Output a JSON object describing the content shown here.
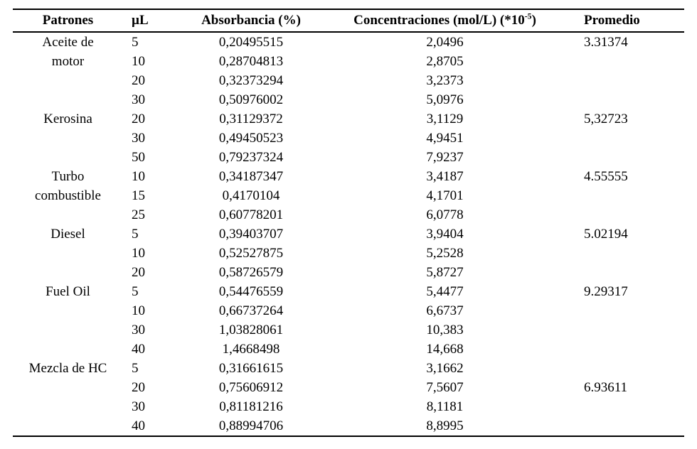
{
  "colors": {
    "background": "#ffffff",
    "text": "#000000",
    "rule": "#000000"
  },
  "table": {
    "headers": {
      "patrones": "Patrones",
      "ul": "µL",
      "absorbancia": "Absorbancia (%)",
      "concentraciones_main": "Concentraciones (mol/L) (*10",
      "concentraciones_sup": "-5",
      "concentraciones_close": ")",
      "promedio": "Promedio"
    },
    "rows": [
      {
        "patron": "Aceite de",
        "ul": "5",
        "absorbancia": "0,20495515",
        "concentracion": "2,0496",
        "promedio": "3.31374"
      },
      {
        "patron": "motor",
        "ul": "10",
        "absorbancia": "0,28704813",
        "concentracion": "2,8705",
        "promedio": ""
      },
      {
        "patron": "",
        "ul": "20",
        "absorbancia": "0,32373294",
        "concentracion": "3,2373",
        "promedio": ""
      },
      {
        "patron": "",
        "ul": "30",
        "absorbancia": "0,50976002",
        "concentracion": "5,0976",
        "promedio": ""
      },
      {
        "patron": "Kerosina",
        "ul": "20",
        "absorbancia": "0,31129372",
        "concentracion": "3,1129",
        "promedio": "5,32723"
      },
      {
        "patron": "",
        "ul": "30",
        "absorbancia": "0,49450523",
        "concentracion": "4,9451",
        "promedio": ""
      },
      {
        "patron": "",
        "ul": "50",
        "absorbancia": "0,79237324",
        "concentracion": "7,9237",
        "promedio": ""
      },
      {
        "patron": "Turbo",
        "ul": "10",
        "absorbancia": "0,34187347",
        "concentracion": "3,4187",
        "promedio": "4.55555"
      },
      {
        "patron": "combustible",
        "ul": "15",
        "absorbancia": "0,4170104",
        "concentracion": "4,1701",
        "promedio": ""
      },
      {
        "patron": "",
        "ul": "25",
        "absorbancia": "0,60778201",
        "concentracion": "6,0778",
        "promedio": ""
      },
      {
        "patron": "Diesel",
        "ul": "5",
        "absorbancia": "0,39403707",
        "concentracion": "3,9404",
        "promedio": "5.02194"
      },
      {
        "patron": "",
        "ul": "10",
        "absorbancia": "0,52527875",
        "concentracion": "5,2528",
        "promedio": ""
      },
      {
        "patron": "",
        "ul": "20",
        "absorbancia": "0,58726579",
        "concentracion": "5,8727",
        "promedio": ""
      },
      {
        "patron": "Fuel Oil",
        "ul": "5",
        "absorbancia": "0,54476559",
        "concentracion": "5,4477",
        "promedio": "9.29317"
      },
      {
        "patron": "",
        "ul": "10",
        "absorbancia": "0,66737264",
        "concentracion": "6,6737",
        "promedio": ""
      },
      {
        "patron": "",
        "ul": "30",
        "absorbancia": "1,03828061",
        "concentracion": "10,383",
        "promedio": ""
      },
      {
        "patron": "",
        "ul": "40",
        "absorbancia": "1,4668498",
        "concentracion": "14,668",
        "promedio": ""
      },
      {
        "patron": "Mezcla de HC",
        "ul": "5",
        "absorbancia": "0,31661615",
        "concentracion": "3,1662",
        "promedio": ""
      },
      {
        "patron": "",
        "ul": "20",
        "absorbancia": "0,75606912",
        "concentracion": "7,5607",
        "promedio": "6.93611"
      },
      {
        "patron": "",
        "ul": "30",
        "absorbancia": "0,81181216",
        "concentracion": "8,1181",
        "promedio": ""
      },
      {
        "patron": "",
        "ul": "40",
        "absorbancia": "0,88994706",
        "concentracion": "8,8995",
        "promedio": ""
      }
    ]
  }
}
